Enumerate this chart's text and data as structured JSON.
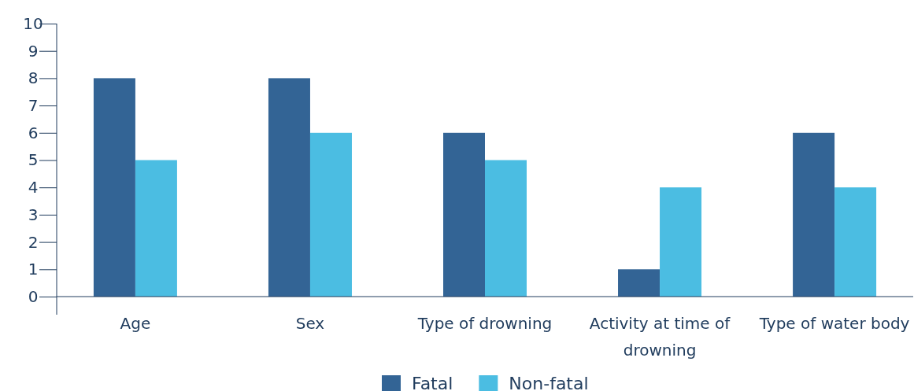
{
  "chart_data": {
    "type": "bar",
    "categories": [
      "Age",
      "Sex",
      "Type of drowning",
      "Activity at time of drowning",
      "Type of water body"
    ],
    "series": [
      {
        "name": "Fatal",
        "color": "#336495",
        "values": [
          8,
          8,
          6,
          1,
          6
        ]
      },
      {
        "name": "Non-fatal",
        "color": "#4bbde2",
        "values": [
          5,
          6,
          5,
          4,
          4
        ]
      }
    ],
    "ylim": [
      0,
      10
    ],
    "yticks": [
      0,
      1,
      2,
      3,
      4,
      5,
      6,
      7,
      8,
      9,
      10
    ],
    "grid": false,
    "legend": "bottom"
  }
}
